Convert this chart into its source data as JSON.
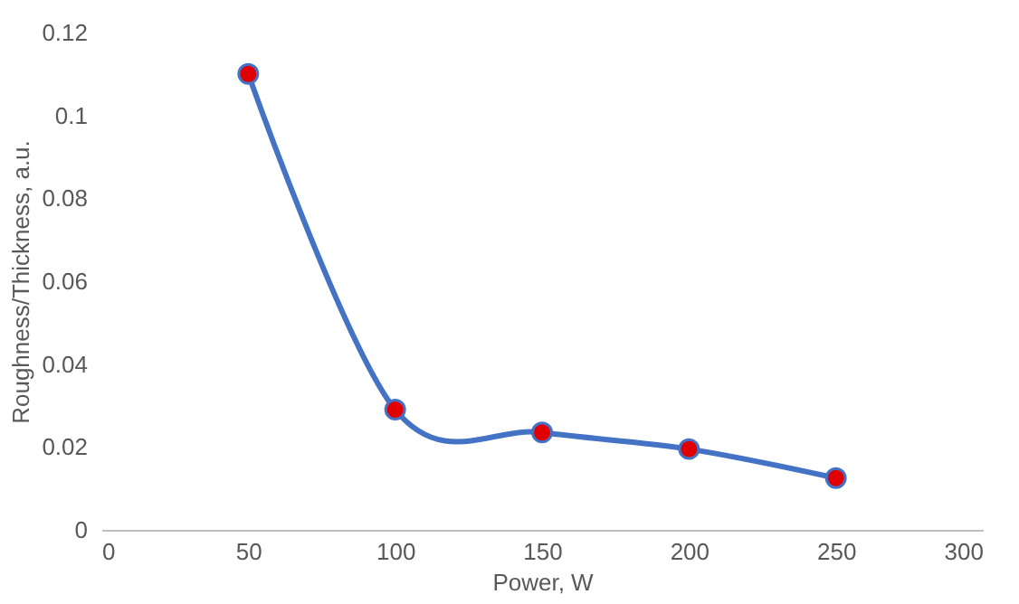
{
  "chart_data": {
    "type": "line",
    "xlabel": "Power, W",
    "ylabel": "Roughness/Thickness, a.u.",
    "x": [
      50,
      100,
      150,
      200,
      250
    ],
    "series": [
      {
        "color": "#4472c4",
        "values": [
          0.11,
          0.029,
          0.0235,
          0.0195,
          0.0125
        ],
        "colors": [
          "#e00000",
          "#e00000",
          "#e00000",
          "#e00000",
          "#e00000"
        ]
      }
    ],
    "xlim": [
      0,
      300
    ],
    "xticks": [
      0,
      50,
      100,
      150,
      200,
      250,
      300
    ],
    "ylim": [
      0,
      0.12
    ],
    "yticks": [
      0,
      0.02,
      0.04,
      0.06,
      0.08,
      0.1,
      0.12
    ],
    "grid": false,
    "marker": "circle",
    "line_style": "solid"
  }
}
